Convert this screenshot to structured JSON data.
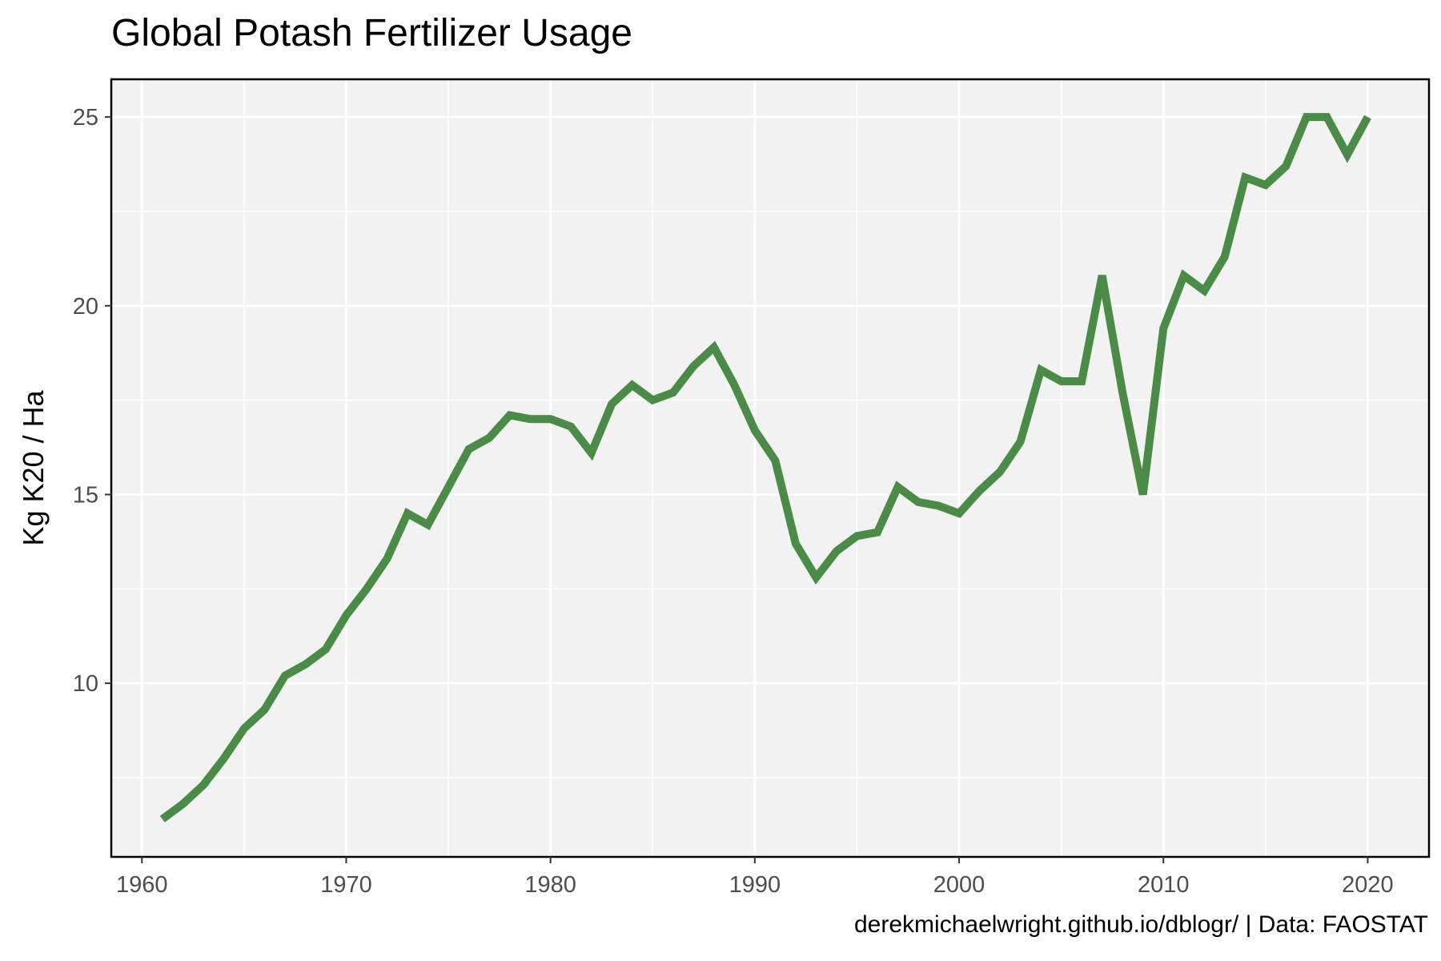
{
  "chart_data": {
    "type": "line",
    "title": "Global Potash Fertilizer Usage",
    "xlabel": "",
    "ylabel": "Kg K20 / Ha",
    "caption": "derekmichaelwright.github.io/dblogr/ | Data: FAOSTAT",
    "xlim": [
      1958.5,
      2023
    ],
    "ylim": [
      5.4,
      26
    ],
    "x_ticks": [
      1960,
      1970,
      1980,
      1990,
      2000,
      2010,
      2020
    ],
    "y_ticks": [
      10,
      15,
      20,
      25
    ],
    "grid": true,
    "line_color": "#4a8c47",
    "panel_background": "#f2f2f2",
    "series": [
      {
        "x": [
          1961,
          1962,
          1963,
          1964,
          1965,
          1966,
          1967,
          1968,
          1969,
          1970,
          1971,
          1972,
          1973,
          1974,
          1975,
          1976,
          1977,
          1978,
          1979,
          1980,
          1981,
          1982,
          1983,
          1984,
          1985,
          1986,
          1987,
          1988,
          1989,
          1990,
          1991,
          1992,
          1993,
          1994,
          1995,
          1996,
          1997,
          1998,
          1999,
          2000,
          2001,
          2002,
          2003,
          2004,
          2005,
          2006,
          2007,
          2008,
          2009,
          2010,
          2011,
          2012,
          2013,
          2014,
          2015,
          2016,
          2017,
          2018,
          2019,
          2020
        ],
        "values": [
          6.4,
          6.8,
          7.3,
          8.0,
          8.8,
          9.3,
          10.2,
          10.5,
          10.9,
          11.8,
          12.5,
          13.3,
          14.5,
          14.2,
          15.2,
          16.2,
          16.5,
          17.1,
          17.0,
          17.0,
          16.8,
          16.1,
          17.4,
          17.9,
          17.5,
          17.7,
          18.4,
          18.9,
          17.9,
          16.7,
          15.9,
          13.7,
          12.8,
          13.5,
          13.9,
          14.0,
          15.2,
          14.8,
          14.7,
          14.5,
          15.1,
          15.6,
          16.4,
          18.3,
          18.0,
          18.0,
          20.8,
          17.7,
          15.0,
          19.4,
          20.8,
          20.4,
          21.3,
          23.4,
          23.2,
          23.7,
          25.0,
          25.0,
          24.0,
          25.0
        ]
      }
    ]
  }
}
